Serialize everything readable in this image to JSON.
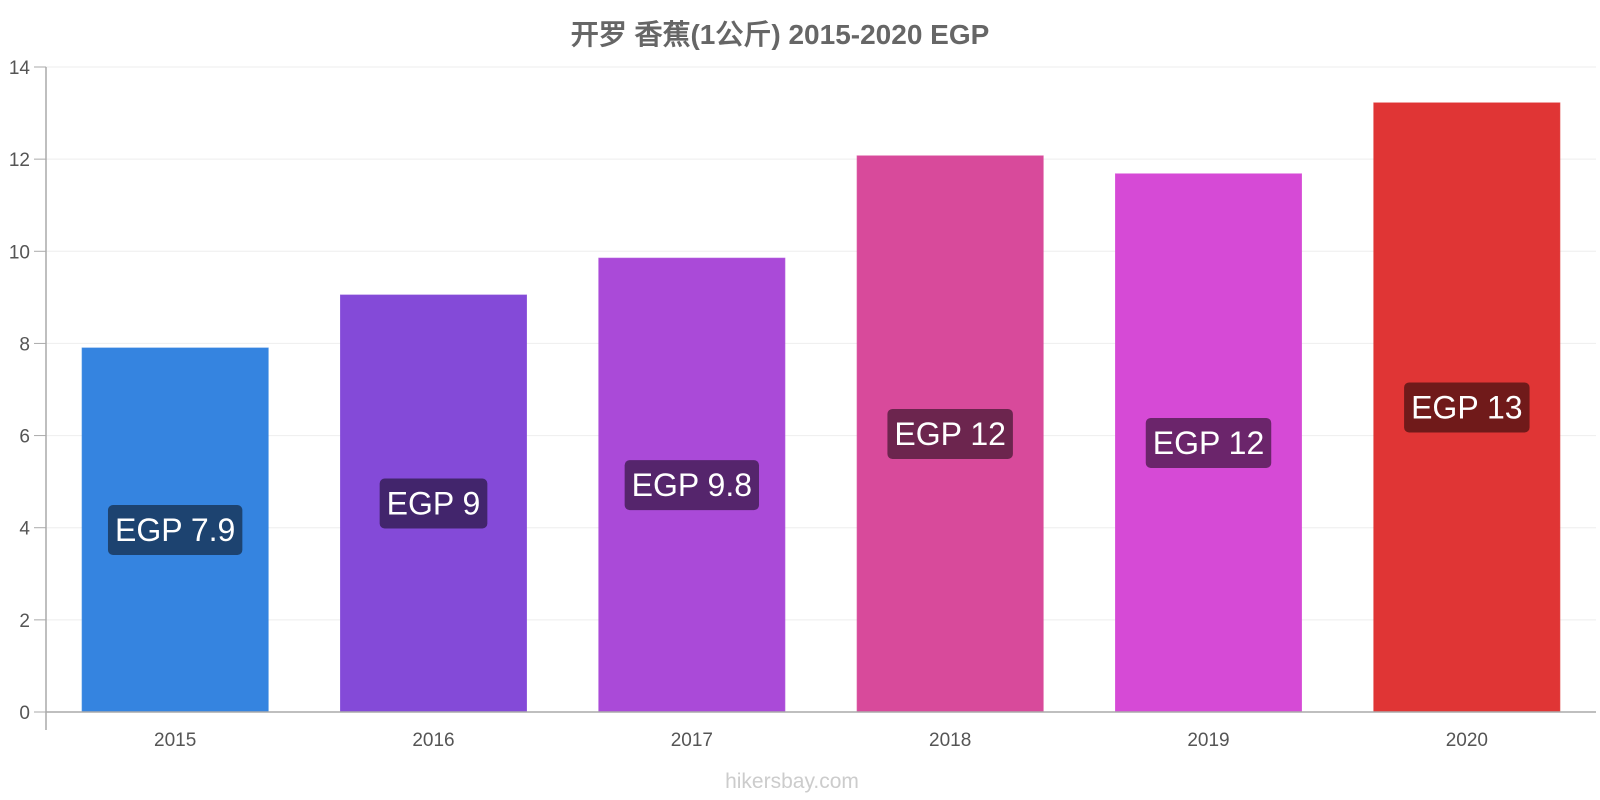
{
  "chart_data": {
    "type": "bar",
    "title": "开罗 香蕉(1公斤) 2015-2020 EGP",
    "categories": [
      "2015",
      "2016",
      "2017",
      "2018",
      "2019",
      "2020"
    ],
    "values": [
      7.9,
      9.05,
      9.85,
      12.07,
      11.68,
      13.22
    ],
    "data_labels": [
      "EGP 7.9",
      "EGP 9",
      "EGP 9.8",
      "EGP 12",
      "EGP 12",
      "EGP 13"
    ],
    "bar_colors": [
      "#3584e0",
      "#844ad8",
      "#aa4ad8",
      "#d84a9b",
      "#d64ad6",
      "#e03535"
    ],
    "label_colors": [
      "#1d4370",
      "#42256c",
      "#55256c",
      "#6c254e",
      "#6b256b",
      "#701a1a"
    ],
    "ylim": [
      0,
      14
    ],
    "yticks": [
      0,
      2,
      4,
      6,
      8,
      10,
      12,
      14
    ],
    "xlabel": "",
    "ylabel": "",
    "grid": true,
    "legend": "none"
  },
  "watermark": "hikersbay.com"
}
